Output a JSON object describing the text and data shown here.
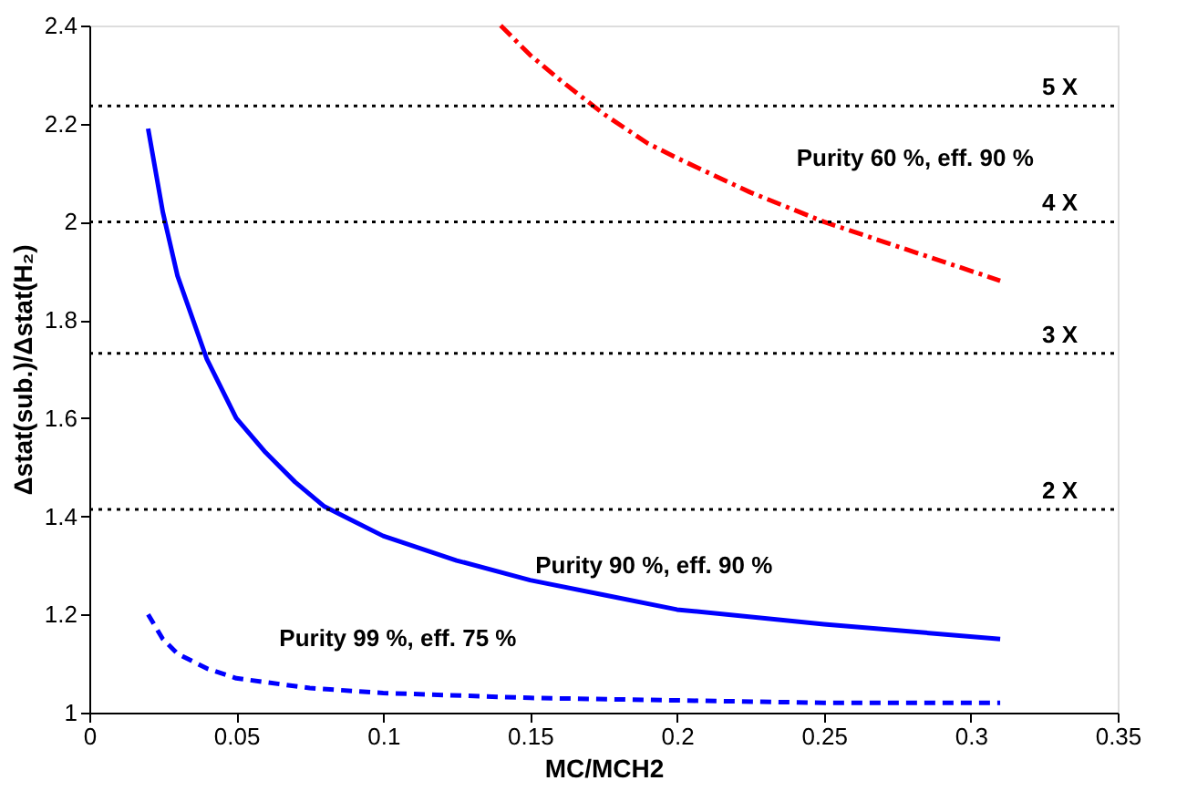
{
  "chart_data": {
    "type": "line",
    "xlabel": "MC/MCH2",
    "ylabel": "Δstat(sub.)/Δstat(H₂)",
    "xlim": [
      0,
      0.35
    ],
    "xticks": [
      0,
      0.05,
      0.1,
      0.15,
      0.2,
      0.25,
      0.3,
      0.35
    ],
    "ylim": [
      1,
      2.4
    ],
    "yticks": [
      1,
      1.2,
      1.4,
      1.6,
      1.8,
      2,
      2.2,
      2.4
    ],
    "grid": false,
    "marker": "none",
    "series": [
      {
        "color": "#ff0000",
        "line_style": "dashdot",
        "x": [
          0.14,
          0.15,
          0.16,
          0.175,
          0.19,
          0.2,
          0.225,
          0.25,
          0.275,
          0.31
        ],
        "values": [
          2.4,
          2.34,
          2.29,
          2.22,
          2.16,
          2.13,
          2.06,
          2.0,
          1.95,
          1.88
        ]
      },
      {
        "color": "#0000ff",
        "line_style": "solid",
        "x": [
          0.02,
          0.025,
          0.03,
          0.04,
          0.05,
          0.06,
          0.07,
          0.08,
          0.09,
          0.1,
          0.125,
          0.15,
          0.175,
          0.2,
          0.25,
          0.31
        ],
        "values": [
          2.19,
          2.02,
          1.89,
          1.72,
          1.6,
          1.53,
          1.47,
          1.42,
          1.39,
          1.36,
          1.31,
          1.27,
          1.24,
          1.21,
          1.18,
          1.15
        ]
      },
      {
        "color": "#0000ff",
        "line_style": "dashed",
        "x": [
          0.02,
          0.025,
          0.03,
          0.04,
          0.05,
          0.075,
          0.1,
          0.15,
          0.2,
          0.25,
          0.31
        ],
        "values": [
          1.2,
          1.15,
          1.12,
          1.09,
          1.07,
          1.05,
          1.04,
          1.03,
          1.025,
          1.02,
          1.02
        ]
      }
    ],
    "ref_lines": [
      {
        "axis": "y",
        "value": 1.414,
        "label": "2 X",
        "line_style": "dotted",
        "color": "#000000"
      },
      {
        "axis": "y",
        "value": 1.732,
        "label": "3 X",
        "line_style": "dotted",
        "color": "#000000"
      },
      {
        "axis": "y",
        "value": 2.0,
        "label": "4 X",
        "line_style": "dotted",
        "color": "#000000"
      },
      {
        "axis": "y",
        "value": 2.236,
        "label": "5 X",
        "line_style": "dotted",
        "color": "#000000"
      }
    ],
    "annotations": [
      "Purity 60 %, eff. 90 %",
      "Purity 90 %, eff. 90 %",
      "Purity 99 %, eff. 75 %"
    ]
  }
}
